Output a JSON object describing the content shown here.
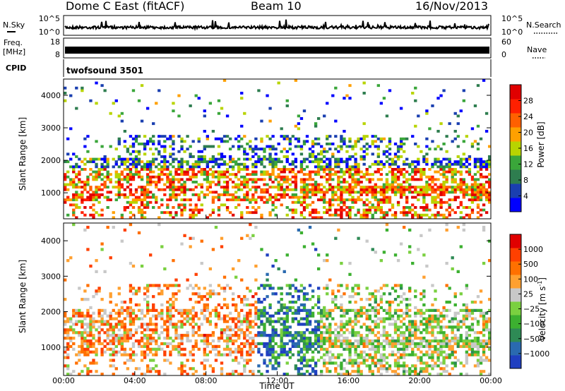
{
  "header": {
    "title": "Dome C East (fitACF)",
    "beam": "Beam 10",
    "date": "16/Nov/2013"
  },
  "chart_data": [
    {
      "type": "line",
      "name": "noise-panel",
      "left_axis": {
        "label": "N.Sky",
        "ticks": [
          "10^5",
          "10^0"
        ]
      },
      "right_axis": {
        "label": "N.Search",
        "ticks": [
          "10^5",
          "10^0"
        ]
      },
      "approx_level": 0.4
    },
    {
      "type": "line",
      "name": "frequency-panel",
      "left_axis": {
        "label_top": "Freq.",
        "label_bottom": "[MHz]",
        "ticks": [
          18,
          8
        ],
        "range": [
          8,
          18
        ]
      },
      "right_axis": {
        "label": "Nave",
        "ticks": [
          60,
          0
        ],
        "range": [
          0,
          60
        ]
      },
      "approx_level": 0.55
    },
    {
      "type": "table",
      "name": "cpid-panel",
      "label": "CPID",
      "program": "twofsound 3501"
    },
    {
      "type": "heatmap",
      "name": "power-panel",
      "ylabel": "Slant Range [km]",
      "yticks": [
        1000,
        2000,
        3000,
        4000
      ],
      "ylim": [
        200,
        4500
      ],
      "colorbar": {
        "label": "Power [dB]",
        "ticks": [
          4,
          8,
          12,
          16,
          20,
          24,
          28
        ],
        "colors": [
          "#0000ff",
          "#1a3fb0",
          "#2e7d4f",
          "#3aa63a",
          "#b8d400",
          "#ffa000",
          "#ff6000",
          "#ff2000",
          "#e00000"
        ]
      }
    },
    {
      "type": "heatmap",
      "name": "velocity-panel",
      "ylabel": "Slant Range [km]",
      "yticks": [
        1000,
        2000,
        3000,
        4000
      ],
      "ylim": [
        200,
        4500
      ],
      "xlabel": "Time UT",
      "xticks": [
        "00:00",
        "04:00",
        "08:00",
        "12:00",
        "16:00",
        "20:00",
        "00:00"
      ],
      "colorbar": {
        "label": "Velocity",
        "unit_base": "[m s",
        "unit_exp": "-1",
        "unit_close": "]",
        "ticks": [
          "1000",
          "500",
          "100",
          "25",
          "−25",
          "−100",
          "−500",
          "−1000"
        ],
        "colors": [
          "#1f3fc0",
          "#2a6ab0",
          "#2e8a55",
          "#3cb030",
          "#7ad040",
          "#c8c8c8",
          "#ffa030",
          "#ff7000",
          "#ff4000",
          "#e00000"
        ]
      }
    }
  ]
}
